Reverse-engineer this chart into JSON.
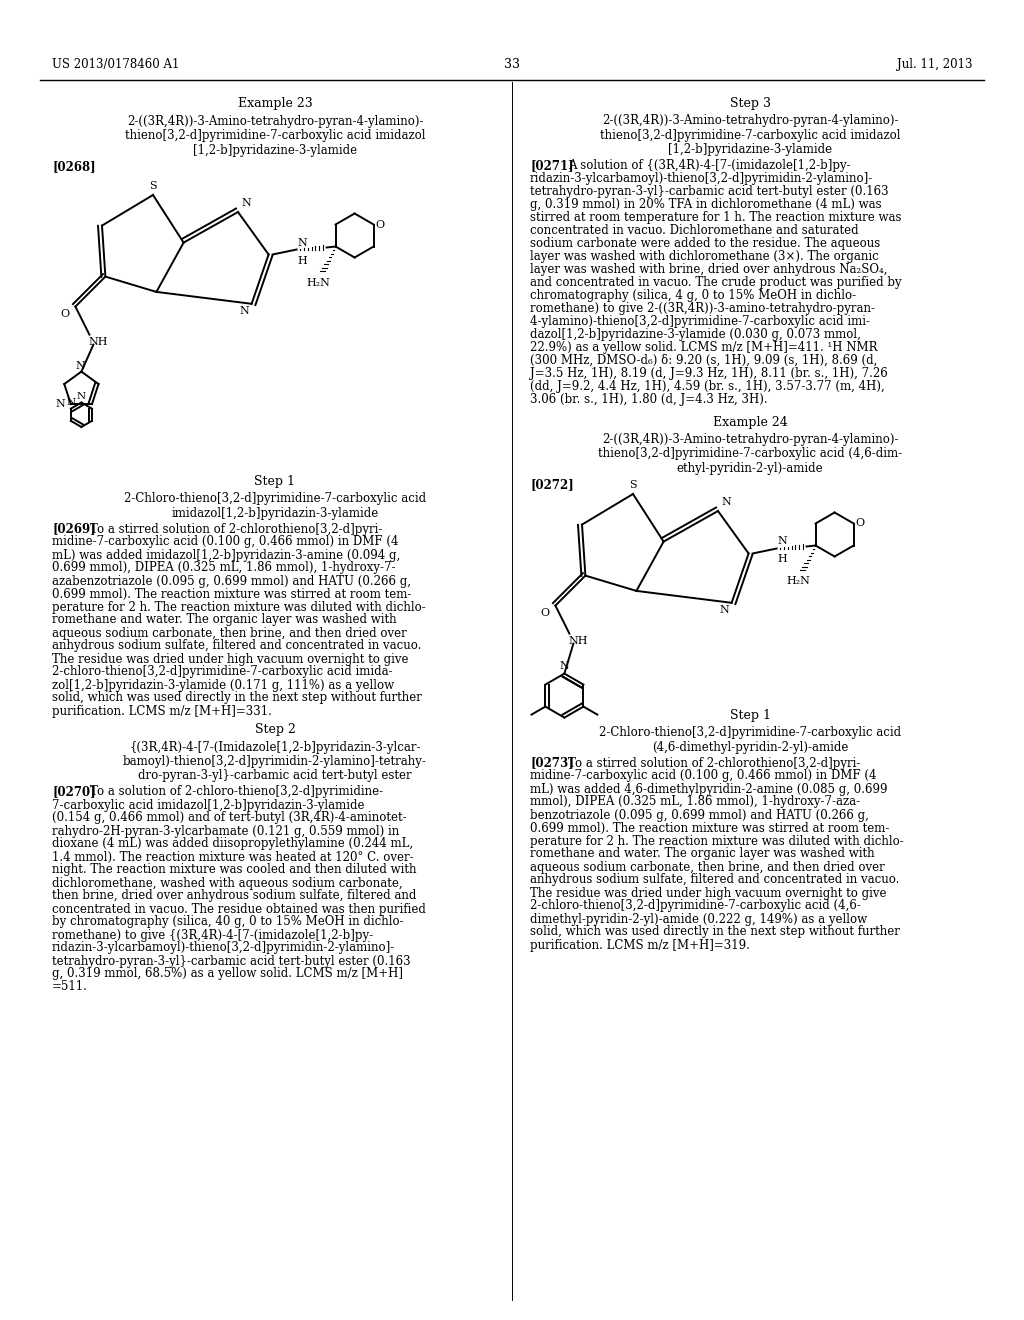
{
  "background_color": "#ffffff",
  "page_number": "33",
  "header_left": "US 2013/0178460 A1",
  "header_right": "Jul. 11, 2013",
  "left_column": {
    "example_title": "Example 23",
    "compound_name_line1": "2-((3R,4R))-3-Amino-tetrahydro-pyran-4-ylamino)-",
    "compound_name_line2": "thieno[3,2-d]pyrimidine-7-carboxylic acid imidazol",
    "compound_name_line3": "[1,2-b]pyridazine-3-ylamide",
    "paragraph_tag": "[0268]",
    "step1_title": "Step 1",
    "step1_compound_line1": "2-Chloro-thieno[3,2-d]pyrimidine-7-carboxylic acid",
    "step1_compound_line2": "imidazol[1,2-b]pyridazin-3-ylamide",
    "step1_tag": "[0269]",
    "step1_text_lines": [
      "To a stirred solution of 2-chlorothieno[3,2-d]pyri-",
      "midine-7-carboxylic acid (0.100 g, 0.466 mmol) in DMF (4",
      "mL) was added imidazol[1,2-b]pyridazin-3-amine (0.094 g,",
      "0.699 mmol), DIPEA (0.325 mL, 1.86 mmol), 1-hydroxy-7-",
      "azabenzotriazole (0.095 g, 0.699 mmol) and HATU (0.266 g,",
      "0.699 mmol). The reaction mixture was stirred at room tem-",
      "perature for 2 h. The reaction mixture was diluted with dichlo-",
      "romethane and water. The organic layer was washed with",
      "aqueous sodium carbonate, then brine, and then dried over",
      "anhydrous sodium sulfate, filtered and concentrated in vacuo.",
      "The residue was dried under high vacuum overnight to give",
      "2-chloro-thieno[3,2-d]pyrimidine-7-carboxylic acid imida-",
      "zol[1,2-b]pyridazin-3-ylamide (0.171 g, 111%) as a yellow",
      "solid, which was used directly in the next step without further",
      "purification. LCMS m/z [M+H]=331."
    ],
    "step2_title": "Step 2",
    "step2_compound_line1": "{(3R,4R)-4-[7-(Imidazole[1,2-b]pyridazin-3-ylcar-",
    "step2_compound_line2": "bamoyl)-thieno[3,2-d]pyrimidin-2-ylamino]-tetrahy-",
    "step2_compound_line3": "dro-pyran-3-yl}-carbamic acid tert-butyl ester",
    "step2_tag": "[0270]",
    "step2_text_lines": [
      "To a solution of 2-chloro-thieno[3,2-d]pyrimidine-",
      "7-carboxylic acid imidazol[1,2-b]pyridazin-3-ylamide",
      "(0.154 g, 0.466 mmol) and of tert-butyl (3R,4R)-4-aminotet-",
      "rahydro-2H-pyran-3-ylcarbamate (0.121 g, 0.559 mmol) in",
      "dioxane (4 mL) was added diisopropylethylamine (0.244 mL,",
      "1.4 mmol). The reaction mixture was heated at 120° C. over-",
      "night. The reaction mixture was cooled and then diluted with",
      "dichloromethane, washed with aqueous sodium carbonate,",
      "then brine, dried over anhydrous sodium sulfate, filtered and",
      "concentrated in vacuo. The residue obtained was then purified",
      "by chromatography (silica, 40 g, 0 to 15% MeOH in dichlo-",
      "romethane) to give {(3R,4R)-4-[7-(imidazole[1,2-b]py-",
      "ridazin-3-ylcarbamoyl)-thieno[3,2-d]pyrimidin-2-ylamino]-",
      "tetrahydro-pyran-3-yl}-carbamic acid tert-butyl ester (0.163",
      "g, 0.319 mmol, 68.5%) as a yellow solid. LCMS m/z [M+H]",
      "=511."
    ]
  },
  "right_column": {
    "step3_title": "Step 3",
    "step3_compound_line1": "2-((3R,4R))-3-Amino-tetrahydro-pyran-4-ylamino)-",
    "step3_compound_line2": "thieno[3,2-d]pyrimidine-7-carboxylic acid imidazol",
    "step3_compound_line3": "[1,2-b]pyridazine-3-ylamide",
    "step3_tag": "[0271]",
    "step3_text_lines": [
      "A solution of {(3R,4R)-4-[7-(imidazole[1,2-b]py-",
      "ridazin-3-ylcarbamoyl)-thieno[3,2-d]pyrimidin-2-ylamino]-",
      "tetrahydro-pyran-3-yl}-carbamic acid tert-butyl ester (0.163",
      "g, 0.319 mmol) in 20% TFA in dichloromethane (4 mL) was",
      "stirred at room temperature for 1 h. The reaction mixture was",
      "concentrated in vacuo. Dichloromethane and saturated",
      "sodium carbonate were added to the residue. The aqueous",
      "layer was washed with dichloromethane (3×). The organic",
      "layer was washed with brine, dried over anhydrous Na₂SO₄,",
      "and concentrated in vacuo. The crude product was purified by",
      "chromatography (silica, 4 g, 0 to 15% MeOH in dichlo-",
      "romethane) to give 2-((3R,4R))-3-amino-tetrahydro-pyran-",
      "4-ylamino)-thieno[3,2-d]pyrimidine-7-carboxylic acid imi-",
      "dazol[1,2-b]pyridazine-3-ylamide (0.030 g, 0.073 mmol,",
      "22.9%) as a yellow solid. LCMS m/z [M+H]=411. ¹H NMR",
      "(300 MHz, DMSO-d₆) δ: 9.20 (s, 1H), 9.09 (s, 1H), 8.69 (d,",
      "J=3.5 Hz, 1H), 8.19 (d, J=9.3 Hz, 1H), 8.11 (br. s., 1H), 7.26",
      "(dd, J=9.2, 4.4 Hz, 1H), 4.59 (br. s., 1H), 3.57-3.77 (m, 4H),",
      "3.06 (br. s., 1H), 1.80 (d, J=4.3 Hz, 3H)."
    ],
    "example24_title": "Example 24",
    "example24_compound_line1": "2-((3R,4R))-3-Amino-tetrahydro-pyran-4-ylamino)-",
    "example24_compound_line2": "thieno[3,2-d]pyrimidine-7-carboxylic acid (4,6-dim-",
    "example24_compound_line3": "ethyl-pyridin-2-yl)-amide",
    "example24_tag": "[0272]",
    "step1b_title": "Step 1",
    "step1b_compound_line1": "2-Chloro-thieno[3,2-d]pyrimidine-7-carboxylic acid",
    "step1b_compound_line2": "(4,6-dimethyl-pyridin-2-yl)-amide",
    "step1b_tag": "[0273]",
    "step1b_text_lines": [
      "To a stirred solution of 2-chlorothieno[3,2-d]pyri-",
      "midine-7-carboxylic acid (0.100 g, 0.466 mmol) in DMF (4",
      "mL) was added 4,6-dimethylpyridin-2-amine (0.085 g, 0.699",
      "mmol), DIPEA (0.325 mL, 1.86 mmol), 1-hydroxy-7-aza-",
      "benzotriazole (0.095 g, 0.699 mmol) and HATU (0.266 g,",
      "0.699 mmol). The reaction mixture was stirred at room tem-",
      "perature for 2 h. The reaction mixture was diluted with dichlo-",
      "romethane and water. The organic layer was washed with",
      "aqueous sodium carbonate, then brine, and then dried over",
      "anhydrous sodium sulfate, filtered and concentrated in vacuo.",
      "The residue was dried under high vacuum overnight to give",
      "2-chloro-thieno[3,2-d]pyrimidine-7-carboxylic acid (4,6-",
      "dimethyl-pyridin-2-yl)-amide (0.222 g, 149%) as a yellow",
      "solid, which was used directly in the next step without further",
      "purification. LCMS m/z [M+H]=319."
    ]
  }
}
